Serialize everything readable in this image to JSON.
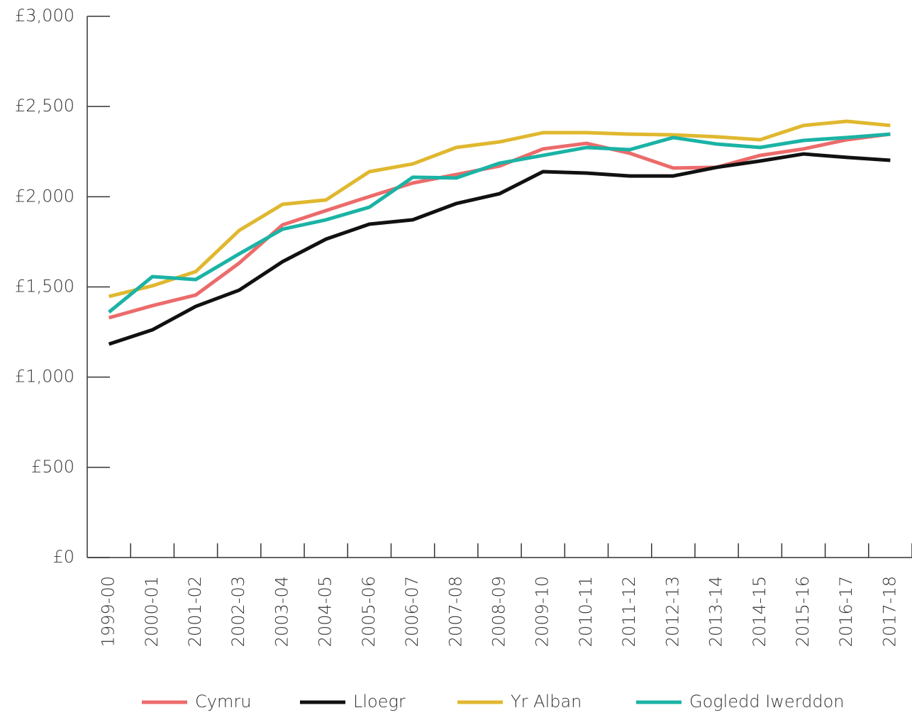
{
  "chart_data": {
    "type": "line",
    "categories": [
      "1999-00",
      "2000-01",
      "2001-02",
      "2002-03",
      "2003-04",
      "2004-05",
      "2005-06",
      "2006-07",
      "2007-08",
      "2008-09",
      "2009-10",
      "2010-11",
      "2011-12",
      "2012-13",
      "2013-14",
      "2014-15",
      "2015-16",
      "2016-17",
      "2017-18"
    ],
    "series": [
      {
        "name": "Cymru",
        "color": "#ec6b6b",
        "values": [
          1329,
          1396,
          1455,
          1632,
          1844,
          1923,
          2001,
          2076,
          2123,
          2170,
          2265,
          2296,
          2241,
          2159,
          2163,
          2229,
          2265,
          2316,
          2347
        ]
      },
      {
        "name": "Lloegr",
        "color": "#111111",
        "values": [
          1183,
          1262,
          1392,
          1482,
          1640,
          1765,
          1848,
          1872,
          1962,
          2017,
          2139,
          2131,
          2115,
          2115,
          2163,
          2198,
          2237,
          2218,
          2202
        ]
      },
      {
        "name": "Yr Alban",
        "color": "#e0b82f",
        "values": [
          1447,
          1506,
          1585,
          1813,
          1958,
          1982,
          2139,
          2182,
          2273,
          2304,
          2355,
          2355,
          2347,
          2343,
          2332,
          2316,
          2395,
          2418,
          2395
        ]
      },
      {
        "name": "Gogledd Iwerddon",
        "color": "#1bb3a5",
        "values": [
          1360,
          1557,
          1541,
          1683,
          1820,
          1872,
          1942,
          2108,
          2104,
          2186,
          2229,
          2273,
          2261,
          2328,
          2292,
          2273,
          2312,
          2328,
          2347
        ]
      }
    ],
    "ylim": [
      0,
      3000
    ],
    "yticks": [
      {
        "value": 0,
        "label": "£0"
      },
      {
        "value": 500,
        "label": "£500"
      },
      {
        "value": 1000,
        "label": "£1,000"
      },
      {
        "value": 1500,
        "label": "£1,500"
      },
      {
        "value": 2000,
        "label": "£2,000"
      },
      {
        "value": 2500,
        "label": "£2,500"
      },
      {
        "value": 3000,
        "label": "£3,000"
      }
    ],
    "legend": "bottom"
  }
}
